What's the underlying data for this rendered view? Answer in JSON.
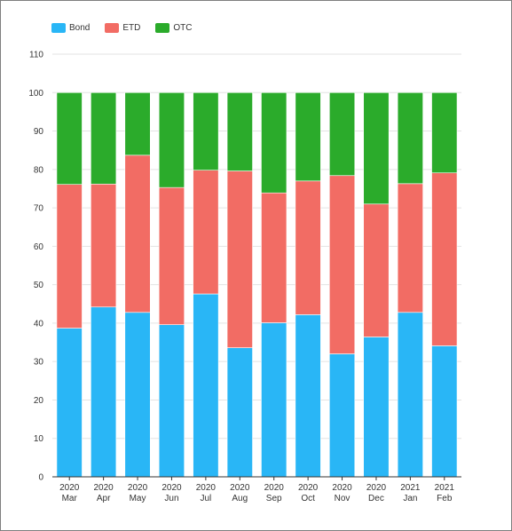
{
  "chart_data": {
    "type": "bar",
    "stacked": true,
    "categories": [
      [
        "2020",
        "Mar"
      ],
      [
        "2020",
        "Apr"
      ],
      [
        "2020",
        "May"
      ],
      [
        "2020",
        "Jun"
      ],
      [
        "2020",
        "Jul"
      ],
      [
        "2020",
        "Aug"
      ],
      [
        "2020",
        "Sep"
      ],
      [
        "2020",
        "Oct"
      ],
      [
        "2020",
        "Nov"
      ],
      [
        "2020",
        "Dec"
      ],
      [
        "2021",
        "Jan"
      ],
      [
        "2021",
        "Feb"
      ]
    ],
    "series": [
      {
        "name": "Bond",
        "color": "#29b6f6",
        "values": [
          38.7,
          44.2,
          42.8,
          39.6,
          47.6,
          33.6,
          40.1,
          42.2,
          32.0,
          36.4,
          42.8,
          34.1
        ]
      },
      {
        "name": "ETD",
        "color": "#f26c64",
        "values": [
          37.4,
          32.0,
          40.9,
          35.7,
          32.2,
          46.0,
          33.8,
          34.8,
          46.4,
          34.6,
          33.5,
          45.0
        ]
      },
      {
        "name": "OTC",
        "color": "#2bab2b",
        "values": [
          23.9,
          23.8,
          16.3,
          24.7,
          20.2,
          20.4,
          26.1,
          23.0,
          21.6,
          29.0,
          23.7,
          20.9
        ]
      }
    ],
    "ylim": [
      0,
      110
    ],
    "yticks": [
      0,
      10,
      20,
      30,
      40,
      50,
      60,
      70,
      80,
      90,
      100,
      110
    ],
    "grid": true,
    "legend_position": "top-left",
    "title": "",
    "xlabel": "",
    "ylabel": ""
  }
}
